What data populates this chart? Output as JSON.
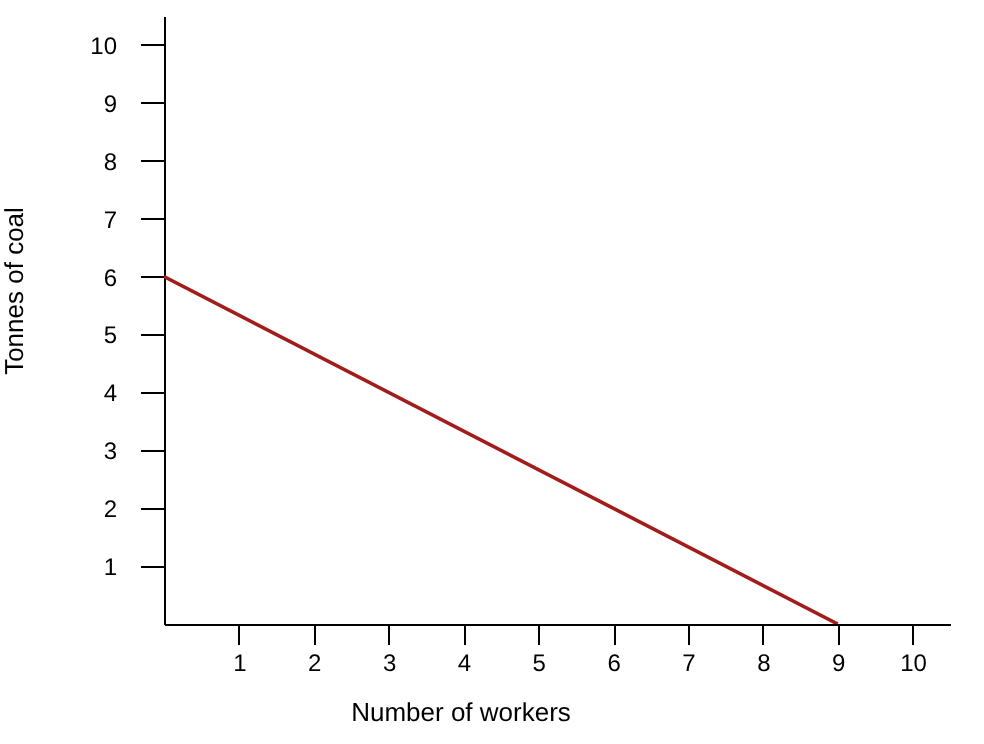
{
  "chart_data": {
    "type": "line",
    "xlabel": "Number of workers",
    "ylabel": "Tonnes of coal",
    "x": [
      0,
      9
    ],
    "series": [
      {
        "color": "#a31c1c",
        "values": [
          6,
          0
        ]
      }
    ],
    "xlim": [
      0,
      10.5
    ],
    "ylim": [
      0,
      10.5
    ],
    "xticks": [
      1,
      2,
      3,
      4,
      5,
      6,
      7,
      8,
      9,
      10
    ],
    "yticks": [
      1,
      2,
      3,
      4,
      5,
      6,
      7,
      8,
      9,
      10
    ],
    "grid": false,
    "marker": "none",
    "line_style": "solid"
  }
}
